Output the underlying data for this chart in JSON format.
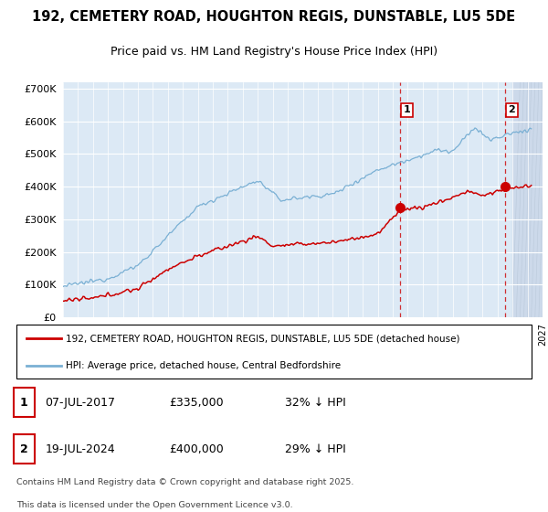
{
  "title": "192, CEMETERY ROAD, HOUGHTON REGIS, DUNSTABLE, LU5 5DE",
  "subtitle": "Price paid vs. HM Land Registry's House Price Index (HPI)",
  "ylim": [
    0,
    720000
  ],
  "yticks": [
    0,
    100000,
    200000,
    300000,
    400000,
    500000,
    600000,
    700000
  ],
  "ytick_labels": [
    "£0",
    "£100K",
    "£200K",
    "£300K",
    "£400K",
    "£500K",
    "£600K",
    "£700K"
  ],
  "xlim_start": 1995,
  "xlim_end": 2027,
  "hpi_color": "#7ab0d4",
  "price_color": "#cc0000",
  "marker1_date_x": 2017.52,
  "marker1_price": 335000,
  "marker2_date_x": 2024.52,
  "marker2_price": 400000,
  "future_start": 2025.0,
  "legend_label_price": "192, CEMETERY ROAD, HOUGHTON REGIS, DUNSTABLE, LU5 5DE (detached house)",
  "legend_label_hpi": "HPI: Average price, detached house, Central Bedfordshire",
  "footer_text": "Contains HM Land Registry data © Crown copyright and database right 2025.\nThis data is licensed under the Open Government Licence v3.0.",
  "table_row1": [
    "1",
    "07-JUL-2017",
    "£335,000",
    "32% ↓ HPI"
  ],
  "table_row2": [
    "2",
    "19-JUL-2024",
    "£400,000",
    "29% ↓ HPI"
  ]
}
